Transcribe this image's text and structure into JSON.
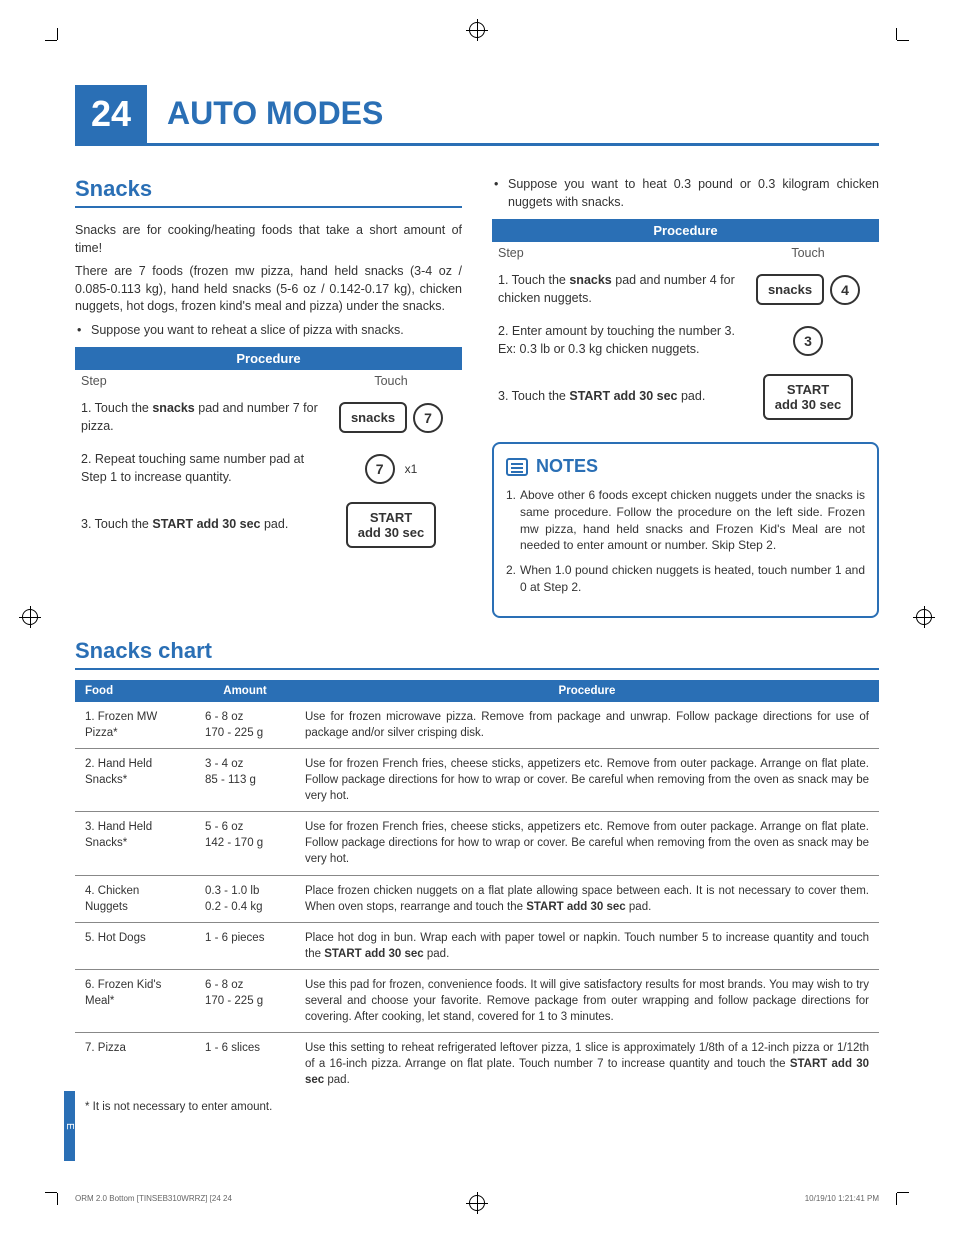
{
  "page_number": "24",
  "page_title": "AUTO MODES",
  "section_title": "Snacks",
  "chart_title": "Snacks chart",
  "intro": {
    "p1": "Snacks are for cooking/heating foods that take a short amount of time!",
    "p2": "There are 7 foods (frozen mw pizza, hand held snacks (3-4 oz / 0.085-0.113 kg), hand held snacks (5-6 oz / 0.142-0.17 kg), chicken nuggets, hot dogs, frozen kind's meal and pizza) under the snacks.",
    "bullet": "Suppose you want to reheat a slice of pizza with snacks."
  },
  "right_bullet": "Suppose you want to heat 0.3 pound or 0.3 kilogram chicken nuggets with snacks.",
  "proc_header": "Procedure",
  "step_label": "Step",
  "touch_label": "Touch",
  "left_steps": {
    "s1": "1. Touch the snacks pad and number 7 for pizza.",
    "s2": "2. Repeat touching same number pad at Step 1 to increase quantity.",
    "s3": "3. Touch the START add 30 sec pad."
  },
  "right_steps": {
    "s1": "1. Touch the snacks pad and number 4 for chicken nuggets.",
    "s2": "2. Enter amount by touching the number 3. Ex: 0.3 lb or 0.3 kg chicken nuggets.",
    "s3": "3. Touch the START add 30 sec pad."
  },
  "buttons": {
    "snacks": "snacks",
    "seven": "7",
    "four": "4",
    "three": "3",
    "x1": "x1",
    "start_line1": "START",
    "start_line2": "add 30 sec"
  },
  "notes_title": "NOTES",
  "notes": {
    "n1_num": "1.",
    "n1": "Above other 6 foods except chicken nuggets under the snacks is same procedure. Follow the procedure on the left side. Frozen mw pizza, hand held snacks and Frozen Kid's Meal are not needed to enter amount or number. Skip Step 2.",
    "n2_num": "2.",
    "n2": "When 1.0 pound chicken nuggets is heated, touch number 1 and 0 at Step 2."
  },
  "chart": {
    "headers": {
      "food": "Food",
      "amount": "Amount",
      "procedure": "Procedure"
    },
    "rows": [
      {
        "food": "1. Frozen MW\n    Pizza*",
        "amount": "6 - 8 oz\n170 - 225 g",
        "proc": "Use for frozen microwave pizza. Remove from package and unwrap. Follow package directions for use of package and/or silver crisping disk."
      },
      {
        "food": "2. Hand Held\n    Snacks*",
        "amount": "3 - 4 oz\n85 - 113 g",
        "proc": "Use for frozen French fries, cheese sticks, appetizers etc. Remove from outer package. Arrange on flat plate. Follow package directions for how to wrap or cover. Be careful when removing from the oven as snack may be very hot."
      },
      {
        "food": "3. Hand Held\n    Snacks*",
        "amount": "5 - 6 oz\n142 - 170 g",
        "proc": "Use for frozen French fries, cheese sticks, appetizers etc. Remove from outer package. Arrange on flat plate. Follow package directions for how to wrap or cover. Be careful when removing from the oven as snack may be very hot."
      },
      {
        "food": "4. Chicken\n    Nuggets",
        "amount": "0.3 - 1.0 lb\n0.2 - 0.4 kg",
        "proc": "Place frozen chicken nuggets on a flat plate allowing space between each. It is not necessary to cover them. When oven stops, rearrange and touch the START add 30 sec pad."
      },
      {
        "food": "5. Hot Dogs",
        "amount": "1 - 6 pieces",
        "proc": "Place hot dog in bun. Wrap each with paper towel or napkin. Touch number 5 to increase quantity and touch the START add 30 sec pad."
      },
      {
        "food": "6. Frozen Kid's\n    Meal*",
        "amount": "6 - 8 oz\n170 - 225 g",
        "proc": "Use this pad for frozen, convenience foods. It will give satisfactory results for most brands. You may wish to try several and choose your favorite. Remove package from outer wrapping and follow package directions for covering. After cooking, let stand, covered for 1 to 3 minutes."
      },
      {
        "food": "7. Pizza",
        "amount": "1 - 6 slices",
        "proc": "Use this setting to reheat refrigerated leftover pizza, 1 slice is approximately 1/8th of a 12-inch pizza or 1/12th of a 16-inch pizza. Arrange on flat plate. Touch number 7 to increase quantity and touch the START add 30 sec pad."
      }
    ]
  },
  "footnote": "* It is not necessary to enter amount.",
  "side_tab": "E",
  "footer_left": "ORM 2.0 Bottom [TINSEB310WRRZ] [24   24",
  "footer_right": "10/19/10   1:21:41 PM"
}
